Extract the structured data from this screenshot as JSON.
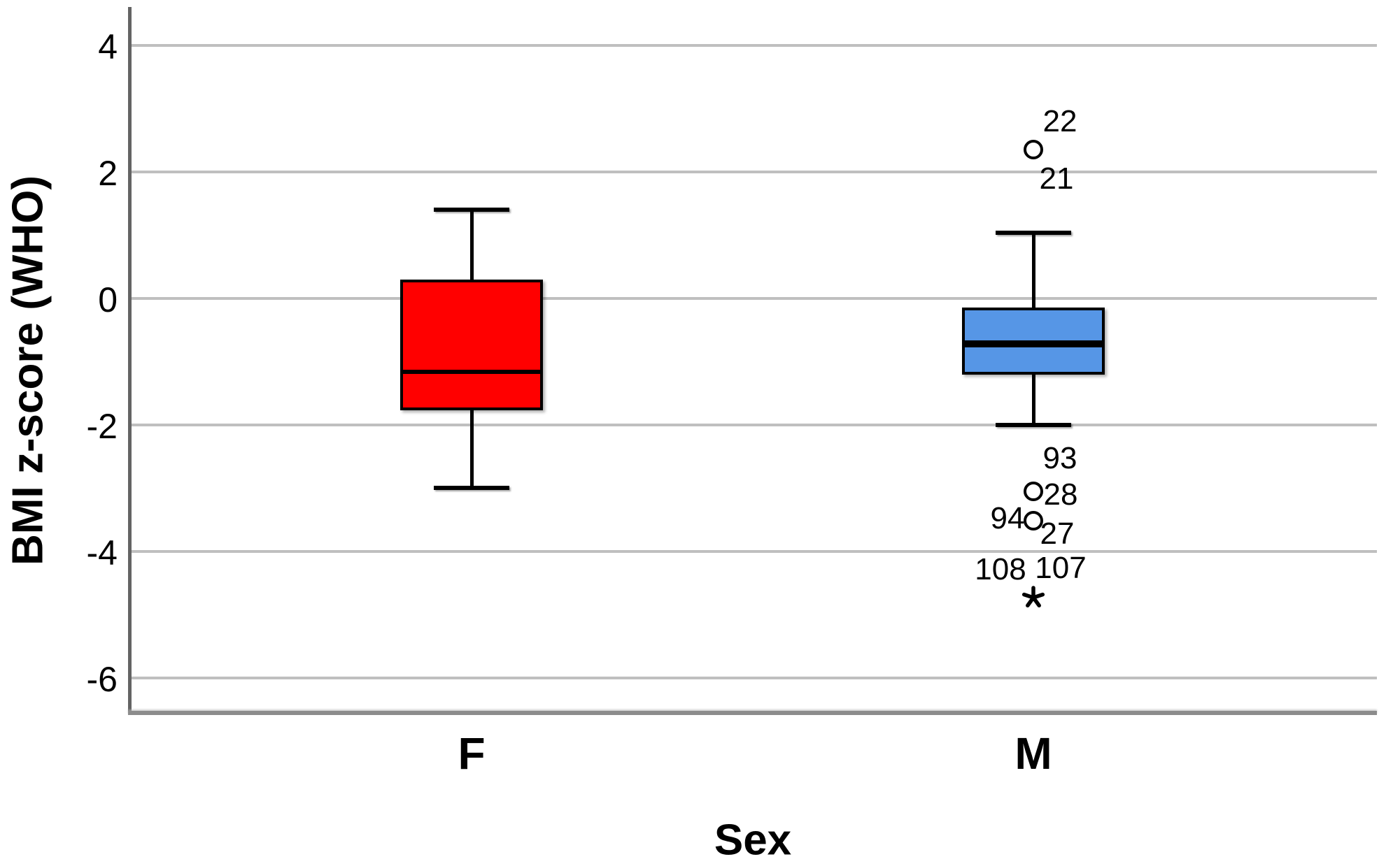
{
  "chart_data": {
    "type": "boxplot",
    "title": "",
    "xlabel": "Sex",
    "ylabel": "BMI z-score (WHO)",
    "categories": [
      "F",
      "M"
    ],
    "yticks": [
      4,
      2,
      0,
      -2,
      -4,
      -6
    ],
    "ylim": [
      -6.6,
      4.6
    ],
    "grid": "horizontal-light-gray",
    "legend": "none",
    "series": [
      {
        "category": "F",
        "color": "#FF0000",
        "whisker_low": -2.99,
        "q1": -1.77,
        "median": -1.16,
        "q3": 0.3,
        "whisker_high": 1.4
      },
      {
        "category": "M",
        "color": "#5696E6",
        "whisker_low": -2.0,
        "q1": -1.2,
        "median": -0.72,
        "q3": -0.14,
        "whisker_high": 1.04
      }
    ],
    "outliers": [
      {
        "category": "M",
        "value": 2.35,
        "marker": "circle",
        "labels": [
          {
            "text": "22",
            "dx": 38,
            "dy": -40
          },
          {
            "text": "21",
            "dx": 33,
            "dy": 42
          }
        ]
      },
      {
        "category": "M",
        "value": -3.05,
        "marker": "circle",
        "labels": [
          {
            "text": "93",
            "dx": 38,
            "dy": -47
          },
          {
            "text": "28",
            "dx": 39,
            "dy": 5
          }
        ]
      },
      {
        "category": "M",
        "value": -3.51,
        "marker": "circle",
        "labels": [
          {
            "text": "94",
            "dx": -37,
            "dy": -3
          },
          {
            "text": "27",
            "dx": 34,
            "dy": 19
          }
        ]
      },
      {
        "category": "M",
        "value": -4.73,
        "marker": "asterisk",
        "labels": [
          {
            "text": "108",
            "dx": -47,
            "dy": -40
          },
          {
            "text": "107",
            "dx": 39,
            "dy": -42
          }
        ]
      }
    ]
  }
}
